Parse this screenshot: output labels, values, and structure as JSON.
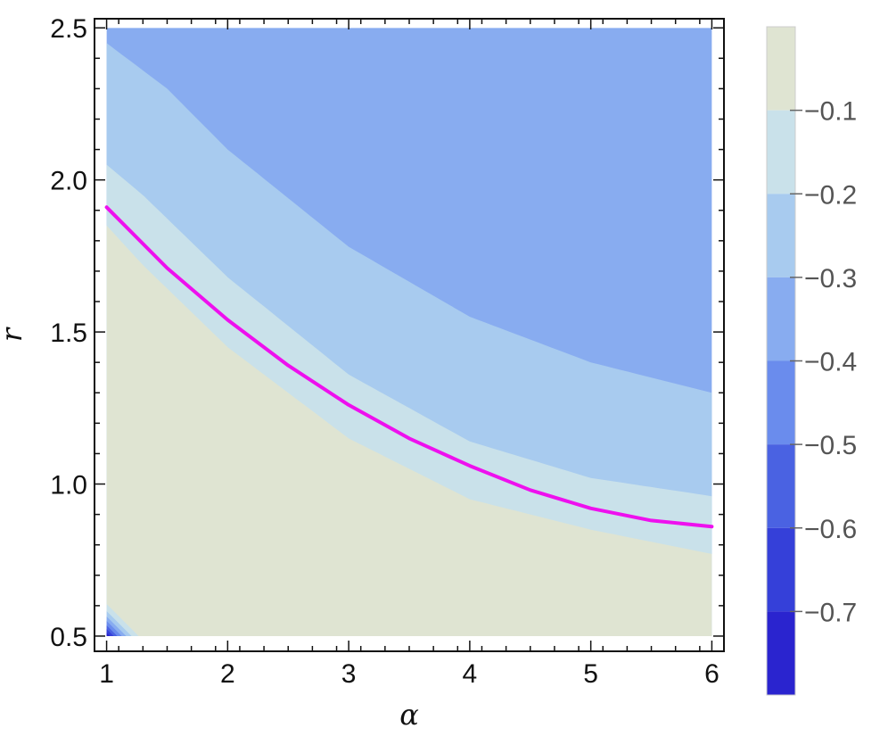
{
  "chart_data": {
    "type": "heatmap",
    "subtype": "contour",
    "xlabel": "α",
    "ylabel": "r",
    "xlim": [
      0.9,
      6.1
    ],
    "ylim": [
      0.45,
      2.53
    ],
    "x_ticks": [
      "1",
      "2",
      "3",
      "4",
      "5",
      "6"
    ],
    "x_tick_values": [
      1,
      2,
      3,
      4,
      5,
      6
    ],
    "y_ticks": [
      "0.5",
      "1.0",
      "1.5",
      "2.0",
      "2.5"
    ],
    "y_tick_values": [
      0.5,
      1.0,
      1.5,
      2.0,
      2.5
    ],
    "data_extent": {
      "x": [
        1,
        6
      ],
      "y": [
        0.5,
        2.5
      ]
    },
    "contour_levels": [
      {
        "range": [
          -0.1,
          0.0
        ],
        "color": "#dfe4d2"
      },
      {
        "range": [
          -0.2,
          -0.1
        ],
        "color": "#c9e1ea"
      },
      {
        "range": [
          -0.3,
          -0.2
        ],
        "color": "#a8cbef"
      },
      {
        "range": [
          -0.4,
          -0.3
        ],
        "color": "#88acf0"
      },
      {
        "range": [
          -0.5,
          -0.4
        ],
        "color": "#6a8ced"
      },
      {
        "range": [
          -0.6,
          -0.5
        ],
        "color": "#4a62e2"
      },
      {
        "range": [
          -0.7,
          -0.6
        ],
        "color": "#3540d9"
      },
      {
        "range": [
          -0.8,
          -0.7
        ],
        "color": "#2a24cf"
      }
    ],
    "contour_boundaries": [
      {
        "level": -0.1,
        "x": [
          1,
          1.3,
          2,
          3,
          4,
          5,
          6
        ],
        "y": [
          1.85,
          1.72,
          1.45,
          1.15,
          0.95,
          0.85,
          0.77
        ]
      },
      {
        "level": -0.2,
        "x": [
          1,
          1.3,
          2,
          3,
          4,
          5,
          6
        ],
        "y": [
          2.05,
          1.95,
          1.68,
          1.36,
          1.14,
          1.02,
          0.96
        ]
      },
      {
        "level": -0.3,
        "x": [
          1,
          1.5,
          2,
          3,
          4,
          5,
          6
        ],
        "y": [
          2.45,
          2.3,
          2.1,
          1.78,
          1.55,
          1.4,
          1.3
        ]
      }
    ],
    "colorbar": {
      "ticks": [
        "−0.1",
        "−0.2",
        "−0.3",
        "−0.4",
        "−0.5",
        "−0.6",
        "−0.7"
      ],
      "tick_values": [
        -0.1,
        -0.2,
        -0.3,
        -0.4,
        -0.5,
        -0.6,
        -0.7
      ],
      "range": [
        -0.8,
        0.0
      ]
    },
    "series": [
      {
        "color": "#ee10ee",
        "x": [
          1,
          1.5,
          2,
          2.5,
          3,
          3.5,
          4,
          4.5,
          5,
          5.5,
          6
        ],
        "y": [
          1.91,
          1.71,
          1.54,
          1.39,
          1.26,
          1.15,
          1.06,
          0.98,
          0.92,
          0.88,
          0.86
        ]
      }
    ]
  }
}
